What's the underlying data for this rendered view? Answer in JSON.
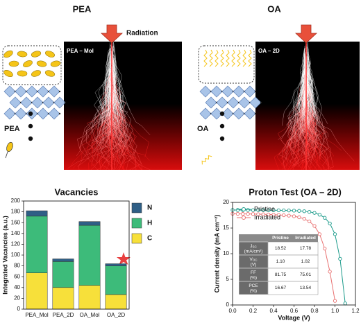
{
  "figure": {
    "left_title": "PEA",
    "right_title": "OA",
    "radiation": "Radiation",
    "left_image_label": "PEA – Mol",
    "right_image_label": "OA – 2D",
    "left_molecule": "PEA",
    "right_molecule": "OA"
  },
  "chart_data": [
    {
      "type": "bar",
      "stacked": true,
      "title": "Vacancies",
      "ylabel": "Integrated Vacancies (a.u.)",
      "categories": [
        "PEA_Mol",
        "PEA_2D",
        "OA_Mol",
        "OA_2D"
      ],
      "series": [
        {
          "name": "C",
          "color": "#f7e03a",
          "values": [
            67,
            40,
            44,
            27
          ]
        },
        {
          "name": "H",
          "color": "#3dbb7a",
          "values": [
            105,
            48,
            111,
            53
          ]
        },
        {
          "name": "N",
          "color": "#2f5f86",
          "values": [
            10,
            5,
            7,
            4
          ]
        }
      ],
      "ylim": [
        0,
        200
      ],
      "yticks": [
        0,
        20,
        40,
        60,
        80,
        100,
        120,
        140,
        160,
        180,
        200
      ]
    },
    {
      "type": "line",
      "title": "Proton Test (OA – 2D)",
      "xlabel": "Voltage (V)",
      "ylabel": "Current density (mA cm⁻²)",
      "x": [
        0,
        0.05,
        0.1,
        0.15,
        0.2,
        0.25,
        0.3,
        0.35,
        0.4,
        0.45,
        0.5,
        0.55,
        0.6,
        0.65,
        0.7,
        0.75,
        0.8,
        0.85,
        0.9,
        0.95,
        1.0,
        1.05,
        1.1
      ],
      "series": [
        {
          "name": "Pristine",
          "color": "#1a9a8a",
          "values": [
            18.52,
            18.52,
            18.51,
            18.51,
            18.5,
            18.5,
            18.49,
            18.48,
            18.47,
            18.46,
            18.45,
            18.43,
            18.4,
            18.35,
            18.28,
            18.15,
            17.95,
            17.6,
            17.0,
            15.9,
            13.8,
            9.0,
            0.3
          ]
        },
        {
          "name": "Irradiated",
          "color": "#e87070",
          "values": [
            17.78,
            17.77,
            17.76,
            17.75,
            17.73,
            17.7,
            17.68,
            17.65,
            17.6,
            17.55,
            17.5,
            17.42,
            17.3,
            17.1,
            16.8,
            16.3,
            15.4,
            13.8,
            11.0,
            6.5,
            0.8,
            null,
            null
          ]
        }
      ],
      "xlim": [
        0,
        1.2
      ],
      "xticks": [
        {
          "value": 0,
          "label": "0.0"
        },
        {
          "value": 0.2,
          "label": "0.2"
        },
        {
          "value": 0.4,
          "label": "0.4"
        },
        {
          "value": 0.6,
          "label": "0.6"
        },
        {
          "value": 0.8,
          "label": "0.8"
        },
        {
          "value": 1.0,
          "label": "1.0"
        },
        {
          "value": 1.2,
          "label": "1.2"
        }
      ],
      "ylim": [
        0,
        20
      ],
      "yticks": [
        0,
        5,
        10,
        15,
        20
      ],
      "legend": "upper left",
      "table": {
        "header": [
          "Pristine",
          "Irradiated"
        ],
        "rows": [
          {
            "label": {
              "main": "J",
              "sub": "SC",
              "unit": "(mA/cm²)"
            },
            "values": [
              "18.52",
              "17.78"
            ]
          },
          {
            "label": {
              "main": "V",
              "sub": "OC",
              "unit": "(V)"
            },
            "values": [
              "1.10",
              "1.02"
            ]
          },
          {
            "label": {
              "main": "FF",
              "unit": "(%)"
            },
            "values": [
              "81.75",
              "75.01"
            ]
          },
          {
            "label": {
              "main": "PCE",
              "unit": "(%)"
            },
            "values": [
              "16.67",
              "13.54"
            ]
          }
        ]
      }
    }
  ]
}
